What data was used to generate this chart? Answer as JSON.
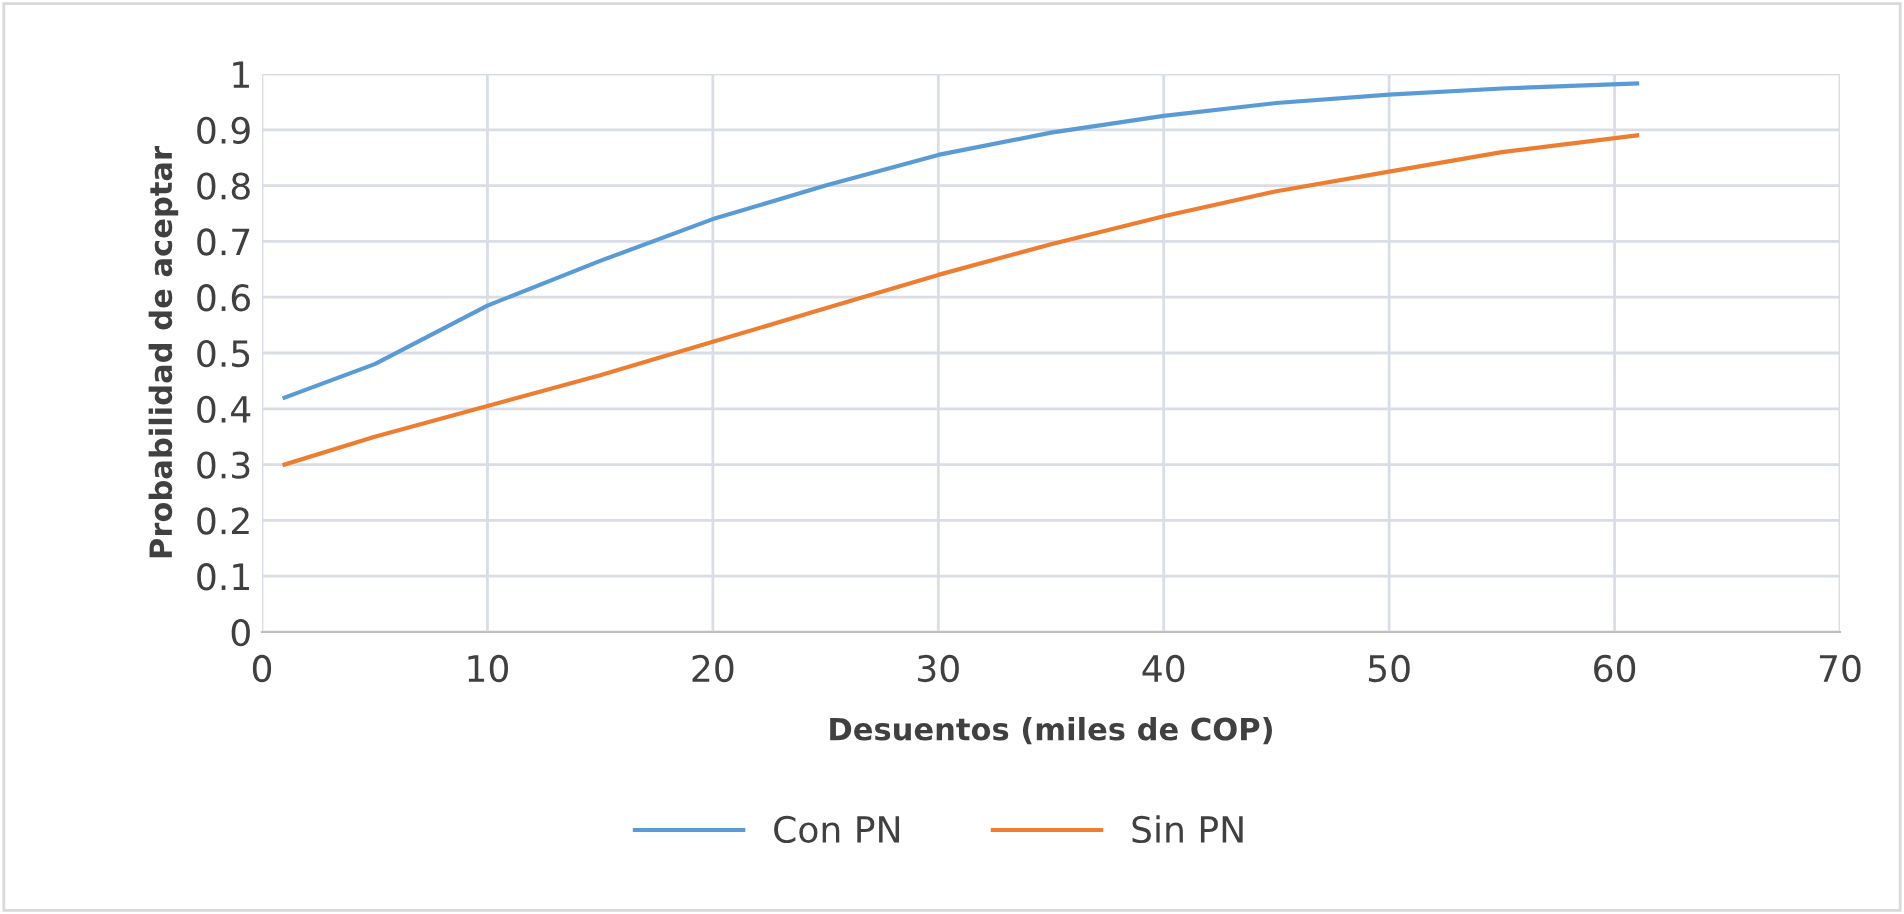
{
  "chart_data": {
    "type": "line",
    "xlabel": "Desuentos (miles de COP)",
    "ylabel": "Probabilidad de aceptar",
    "xlim": [
      0,
      70
    ],
    "xticks": [
      0,
      10,
      20,
      30,
      40,
      50,
      60,
      70
    ],
    "ylim": [
      0,
      1
    ],
    "yticks": [
      0,
      0.1,
      0.2,
      0.3,
      0.4,
      0.5,
      0.6,
      0.7,
      0.8,
      0.9,
      1
    ],
    "grid": true,
    "legend": "bottom",
    "marker": "none",
    "line_style": "solid",
    "x": [
      1,
      5,
      10,
      15,
      20,
      25,
      30,
      35,
      40,
      45,
      50,
      55,
      61
    ],
    "series": [
      {
        "name": "Con PN",
        "color": "#5b9bd5",
        "values": [
          0.42,
          0.48,
          0.585,
          0.665,
          0.74,
          0.8,
          0.855,
          0.895,
          0.925,
          0.948,
          0.963,
          0.974,
          0.983
        ]
      },
      {
        "name": "Sin PN",
        "color": "#ed7d31",
        "values": [
          0.3,
          0.35,
          0.405,
          0.46,
          0.52,
          0.58,
          0.64,
          0.695,
          0.745,
          0.79,
          0.825,
          0.86,
          0.89
        ]
      }
    ]
  }
}
